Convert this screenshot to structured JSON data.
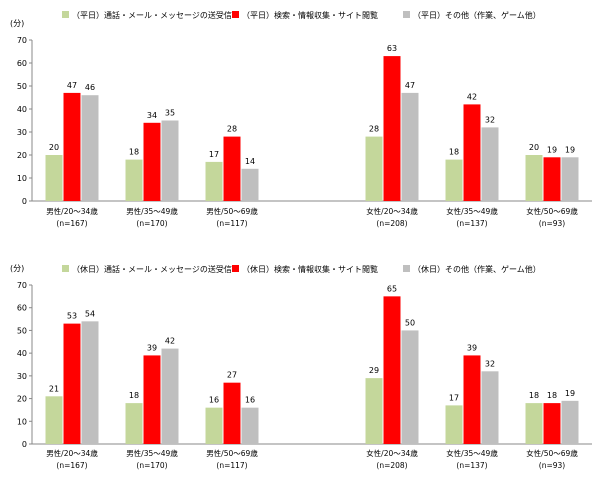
{
  "chart_data": [
    {
      "type": "bar",
      "ylabel": "(分)",
      "ylim": [
        0,
        70
      ],
      "yticks": [
        0,
        10,
        20,
        30,
        40,
        50,
        60,
        70
      ],
      "categories": [
        {
          "line1": "男性/20～34歳",
          "line2": "(n=167)"
        },
        {
          "line1": "男性/35～49歳",
          "line2": "(n=170)"
        },
        {
          "line1": "男性/50～69歳",
          "line2": "(n=117)"
        },
        {
          "line1": "",
          "line2": ""
        },
        {
          "line1": "女性/20～34歳",
          "line2": "(n=208)"
        },
        {
          "line1": "女性/35～49歳",
          "line2": "(n=137)"
        },
        {
          "line1": "女性/50～69歳",
          "line2": "(n=93)"
        }
      ],
      "series": [
        {
          "name": "（平日）通話・メール・メッセージの送受信",
          "color": "#c4d79b",
          "values": [
            20,
            18,
            17,
            null,
            28,
            18,
            20
          ]
        },
        {
          "name": "（平日）検索・情報収集・サイト閲覧",
          "color": "#ff0000",
          "values": [
            47,
            34,
            28,
            null,
            63,
            42,
            19
          ]
        },
        {
          "name": "（平日）その他（作業、ゲーム他）",
          "color": "#bfbfbf",
          "values": [
            46,
            35,
            14,
            null,
            47,
            32,
            19
          ]
        }
      ]
    },
    {
      "type": "bar",
      "ylabel": "(分)",
      "ylim": [
        0,
        70
      ],
      "yticks": [
        0,
        10,
        20,
        30,
        40,
        50,
        60,
        70
      ],
      "categories": [
        {
          "line1": "男性/20～34歳",
          "line2": "(n=167)"
        },
        {
          "line1": "男性/35～49歳",
          "line2": "(n=170)"
        },
        {
          "line1": "男性/50～69歳",
          "line2": "(n=117)"
        },
        {
          "line1": "",
          "line2": ""
        },
        {
          "line1": "女性/20～34歳",
          "line2": "(n=208)"
        },
        {
          "line1": "女性/35～49歳",
          "line2": "(n=137)"
        },
        {
          "line1": "女性/50～69歳",
          "line2": "(n=93)"
        }
      ],
      "series": [
        {
          "name": "（休日）通話・メール・メッセージの送受信",
          "color": "#c4d79b",
          "values": [
            21,
            18,
            16,
            null,
            29,
            17,
            18
          ]
        },
        {
          "name": "（休日）検索・情報収集・サイト閲覧",
          "color": "#ff0000",
          "values": [
            53,
            39,
            27,
            null,
            65,
            39,
            18
          ]
        },
        {
          "name": "（休日）その他（作業、ゲーム他）",
          "color": "#bfbfbf",
          "values": [
            54,
            42,
            16,
            null,
            50,
            32,
            19
          ]
        }
      ]
    }
  ]
}
